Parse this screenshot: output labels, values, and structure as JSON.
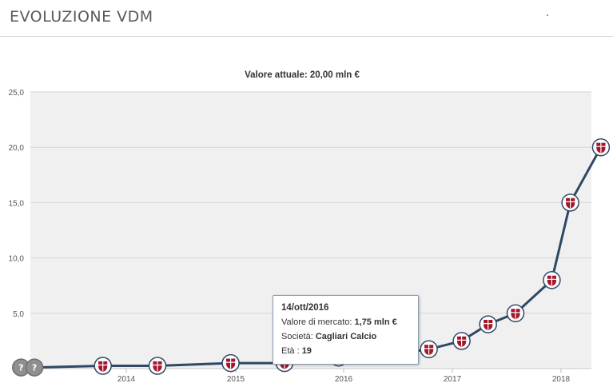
{
  "header": {
    "title": "EVOLUZIONE VDM"
  },
  "chart_data": {
    "type": "line",
    "title": "Valore attuale: 20,00 mln €",
    "ylim": [
      0,
      25
    ],
    "y_ticks": [
      "0",
      "5,0",
      "10,0",
      "15,0",
      "20,0",
      "25,0"
    ],
    "x_ticks": [
      "2014",
      "2015",
      "2016",
      "2017",
      "2018"
    ],
    "series": [
      {
        "x": [
          "2013-01-15",
          "2013-03-01",
          "2013-10-15",
          "2014-04-15",
          "2014-12-15",
          "2015-06-15",
          "2015-12-15",
          "2016-06-01",
          "2016-10-14",
          "2017-02-01",
          "2017-05-01",
          "2017-08-01",
          "2017-12-01",
          "2018-02-01",
          "2018-05-15"
        ],
        "values": [
          0.1,
          0.1,
          0.25,
          0.25,
          0.5,
          0.5,
          1.0,
          1.25,
          1.75,
          2.5,
          4.0,
          5.0,
          8.0,
          15.0,
          20.0
        ]
      }
    ],
    "tooltip": {
      "date": "14/ott/2016",
      "value_label": "Valore di mercato:",
      "value": "1,75 mln €",
      "club_label": "Società:",
      "club": "Cagliari Calcio",
      "age_label": "Età :",
      "age": "19"
    },
    "colors": {
      "line": "#2f4864",
      "plot_bg": "#f0f0f0",
      "grid": "#d6d6d6",
      "crest": "#a3162c"
    }
  }
}
